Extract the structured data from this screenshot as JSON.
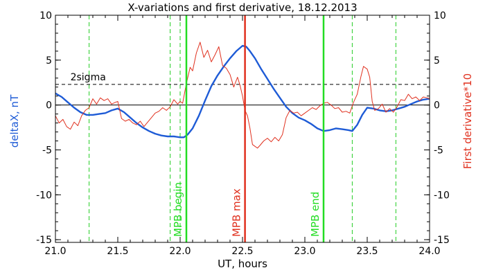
{
  "chart_data": {
    "type": "line",
    "title": "X-variations and first derivative, 18.12.2013",
    "xlabel": "UT, hours",
    "ylabel_left": "deltaX, nT",
    "ylabel_right": "First derivative*10",
    "xlim": [
      21.0,
      24.0
    ],
    "ylim": [
      -15.3,
      10
    ],
    "x_ticks": [
      21.0,
      21.5,
      22.0,
      22.5,
      23.0,
      23.5,
      24.0
    ],
    "y_ticks": [
      -15,
      -10,
      -5,
      0,
      5,
      10
    ],
    "grid": false,
    "sigma_level": 2.3,
    "sigma_label": "2sigma",
    "zero_line": 0,
    "series": [
      {
        "name": "deltaX, nT",
        "color": "#1e5bd6",
        "points": [
          [
            21.0,
            1.3
          ],
          [
            21.05,
            0.9
          ],
          [
            21.1,
            0.3
          ],
          [
            21.15,
            -0.3
          ],
          [
            21.2,
            -0.8
          ],
          [
            21.25,
            -1.1
          ],
          [
            21.3,
            -1.1
          ],
          [
            21.35,
            -1.0
          ],
          [
            21.4,
            -0.9
          ],
          [
            21.45,
            -0.6
          ],
          [
            21.5,
            -0.4
          ],
          [
            21.55,
            -0.8
          ],
          [
            21.6,
            -1.4
          ],
          [
            21.65,
            -2.0
          ],
          [
            21.7,
            -2.5
          ],
          [
            21.75,
            -2.9
          ],
          [
            21.8,
            -3.2
          ],
          [
            21.85,
            -3.4
          ],
          [
            21.9,
            -3.5
          ],
          [
            21.95,
            -3.5
          ],
          [
            22.0,
            -3.6
          ],
          [
            22.03,
            -3.6
          ],
          [
            22.06,
            -3.3
          ],
          [
            22.1,
            -2.6
          ],
          [
            22.15,
            -1.2
          ],
          [
            22.2,
            0.5
          ],
          [
            22.25,
            2.1
          ],
          [
            22.3,
            3.3
          ],
          [
            22.35,
            4.3
          ],
          [
            22.4,
            5.2
          ],
          [
            22.45,
            6.0
          ],
          [
            22.5,
            6.6
          ],
          [
            22.53,
            6.5
          ],
          [
            22.56,
            6.0
          ],
          [
            22.6,
            5.2
          ],
          [
            22.65,
            4.0
          ],
          [
            22.7,
            2.9
          ],
          [
            22.75,
            1.8
          ],
          [
            22.8,
            0.8
          ],
          [
            22.85,
            -0.2
          ],
          [
            22.9,
            -0.9
          ],
          [
            22.95,
            -1.4
          ],
          [
            23.0,
            -1.7
          ],
          [
            23.05,
            -2.1
          ],
          [
            23.1,
            -2.6
          ],
          [
            23.15,
            -2.9
          ],
          [
            23.2,
            -2.8
          ],
          [
            23.25,
            -2.6
          ],
          [
            23.3,
            -2.7
          ],
          [
            23.35,
            -2.8
          ],
          [
            23.38,
            -2.9
          ],
          [
            23.42,
            -2.2
          ],
          [
            23.46,
            -1.1
          ],
          [
            23.5,
            -0.3
          ],
          [
            23.55,
            -0.4
          ],
          [
            23.6,
            -0.6
          ],
          [
            23.65,
            -0.7
          ],
          [
            23.7,
            -0.6
          ],
          [
            23.75,
            -0.4
          ],
          [
            23.8,
            -0.2
          ],
          [
            23.85,
            0.1
          ],
          [
            23.9,
            0.4
          ],
          [
            23.95,
            0.6
          ],
          [
            24.0,
            0.7
          ]
        ]
      },
      {
        "name": "First derivative*10",
        "color": "#e0301e",
        "points": [
          [
            21.0,
            -1.2
          ],
          [
            21.03,
            -2.0
          ],
          [
            21.06,
            -1.6
          ],
          [
            21.09,
            -2.4
          ],
          [
            21.12,
            -2.7
          ],
          [
            21.15,
            -1.9
          ],
          [
            21.18,
            -2.3
          ],
          [
            21.21,
            -1.2
          ],
          [
            21.24,
            -0.6
          ],
          [
            21.27,
            -0.3
          ],
          [
            21.3,
            0.7
          ],
          [
            21.33,
            0.1
          ],
          [
            21.36,
            0.8
          ],
          [
            21.39,
            0.5
          ],
          [
            21.42,
            0.7
          ],
          [
            21.45,
            0.1
          ],
          [
            21.48,
            0.3
          ],
          [
            21.5,
            0.4
          ],
          [
            21.53,
            -1.5
          ],
          [
            21.56,
            -1.8
          ],
          [
            21.59,
            -1.6
          ],
          [
            21.62,
            -2.0
          ],
          [
            21.65,
            -2.2
          ],
          [
            21.68,
            -1.8
          ],
          [
            21.71,
            -2.4
          ],
          [
            21.74,
            -1.9
          ],
          [
            21.77,
            -1.4
          ],
          [
            21.8,
            -0.9
          ],
          [
            21.83,
            -0.7
          ],
          [
            21.86,
            -0.3
          ],
          [
            21.89,
            -0.6
          ],
          [
            21.92,
            -0.2
          ],
          [
            21.95,
            0.6
          ],
          [
            21.98,
            0.1
          ],
          [
            22.0,
            0.4
          ],
          [
            22.02,
            0.2
          ],
          [
            22.05,
            2.4
          ],
          [
            22.08,
            4.2
          ],
          [
            22.1,
            3.8
          ],
          [
            22.13,
            5.8
          ],
          [
            22.16,
            7.0
          ],
          [
            22.19,
            5.3
          ],
          [
            22.22,
            6.1
          ],
          [
            22.25,
            4.8
          ],
          [
            22.28,
            5.6
          ],
          [
            22.31,
            6.5
          ],
          [
            22.34,
            4.4
          ],
          [
            22.37,
            4.1
          ],
          [
            22.4,
            3.4
          ],
          [
            22.43,
            2.0
          ],
          [
            22.46,
            3.1
          ],
          [
            22.48,
            2.2
          ],
          [
            22.5,
            1.0
          ],
          [
            22.52,
            -0.6
          ],
          [
            22.54,
            -1.2
          ],
          [
            22.56,
            -2.6
          ],
          [
            22.58,
            -4.4
          ],
          [
            22.6,
            -4.6
          ],
          [
            22.62,
            -4.8
          ],
          [
            22.64,
            -4.5
          ],
          [
            22.67,
            -4.0
          ],
          [
            22.7,
            -3.7
          ],
          [
            22.73,
            -4.1
          ],
          [
            22.76,
            -3.6
          ],
          [
            22.79,
            -4.0
          ],
          [
            22.82,
            -3.3
          ],
          [
            22.85,
            -1.4
          ],
          [
            22.88,
            -0.6
          ],
          [
            22.91,
            -0.9
          ],
          [
            22.94,
            -0.8
          ],
          [
            22.97,
            -1.2
          ],
          [
            23.0,
            -0.9
          ],
          [
            23.03,
            -0.6
          ],
          [
            23.06,
            -0.3
          ],
          [
            23.09,
            -0.5
          ],
          [
            23.12,
            -0.1
          ],
          [
            23.15,
            0.2
          ],
          [
            23.18,
            0.3
          ],
          [
            23.21,
            0.0
          ],
          [
            23.24,
            -0.4
          ],
          [
            23.27,
            -0.3
          ],
          [
            23.3,
            -0.8
          ],
          [
            23.33,
            -0.7
          ],
          [
            23.36,
            -0.9
          ],
          [
            23.39,
            0.3
          ],
          [
            23.42,
            1.2
          ],
          [
            23.45,
            3.2
          ],
          [
            23.47,
            4.3
          ],
          [
            23.5,
            4.0
          ],
          [
            23.52,
            3.1
          ],
          [
            23.54,
            0.4
          ],
          [
            23.56,
            -0.6
          ],
          [
            23.59,
            -0.4
          ],
          [
            23.62,
            0.1
          ],
          [
            23.65,
            -0.8
          ],
          [
            23.68,
            -0.4
          ],
          [
            23.71,
            -0.8
          ],
          [
            23.74,
            -0.2
          ],
          [
            23.77,
            0.6
          ],
          [
            23.8,
            0.5
          ],
          [
            23.83,
            1.2
          ],
          [
            23.86,
            0.7
          ],
          [
            23.89,
            0.9
          ],
          [
            23.92,
            0.5
          ],
          [
            23.95,
            0.9
          ],
          [
            23.98,
            0.8
          ],
          [
            24.0,
            0.7
          ]
        ]
      }
    ],
    "markers": [
      {
        "label": "MPB begin",
        "x": 22.05,
        "color": "#22dd22"
      },
      {
        "label": "MPB max",
        "x": 22.52,
        "color": "#e0301e"
      },
      {
        "label": "MPB end",
        "x": 23.15,
        "color": "#22dd22"
      }
    ],
    "dashed_verticals": [
      21.27,
      21.92,
      22.0,
      23.38,
      23.73
    ],
    "dashed_color": "#22cc22"
  }
}
